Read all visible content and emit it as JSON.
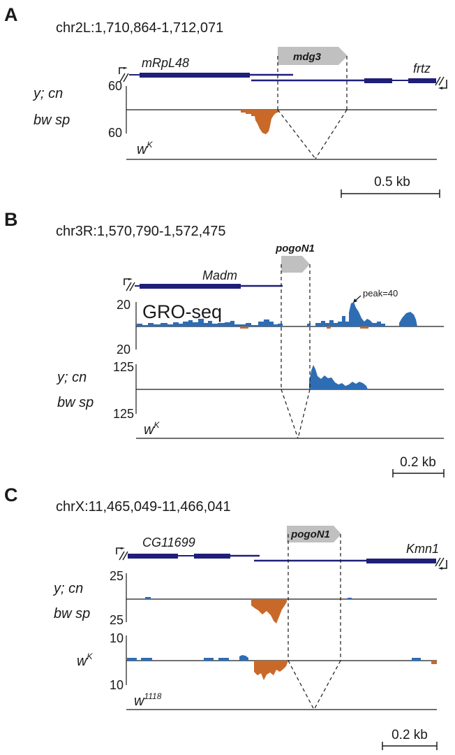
{
  "colors": {
    "gene": "#1f1f7a",
    "te": "#c0c0c0",
    "plus_signal": "#2e6db4",
    "minus_signal": "#c8692a",
    "axis": "#1a1a1a"
  },
  "panels": [
    {
      "letter": "A",
      "coordinates": "chr2L:1,710,864-1,712,071",
      "te_label": "mdg3",
      "genes": [
        "mRpL48",
        "frtz"
      ],
      "tracks": [
        {
          "label_line1": "y; cn",
          "label_line2": "bw sp",
          "scale_top": "60",
          "scale_bottom": "60"
        }
      ],
      "bottom_strain": "w",
      "bottom_strain_sup": "K",
      "scale_bar": "0.5 kb"
    },
    {
      "letter": "B",
      "coordinates": "chr3R:1,570,790-1,572,475",
      "te_label": "pogoN1",
      "genes": [
        "Madm"
      ],
      "tracks": [
        {
          "title": "GRO-seq",
          "scale_top": "20",
          "scale_bottom": "20",
          "annotation": "peak=40"
        },
        {
          "label_line1": "y; cn",
          "label_line2": "bw sp",
          "scale_top": "125",
          "scale_bottom": "125"
        }
      ],
      "bottom_strain": "w",
      "bottom_strain_sup": "K",
      "scale_bar": "0.2 kb"
    },
    {
      "letter": "C",
      "coordinates": "chrX:11,465,049-11,466,041",
      "te_label": "pogoN1",
      "genes": [
        "CG11699",
        "Kmn1"
      ],
      "tracks": [
        {
          "label_line1": "y; cn",
          "label_line2": "bw sp",
          "scale_top": "25",
          "scale_bottom": "25"
        },
        {
          "strain": "w",
          "strain_sup": "K",
          "scale_top": "10",
          "scale_bottom": "10"
        }
      ],
      "bottom_strain": "w",
      "bottom_strain_sup": "1118",
      "scale_bar": "0.2 kb"
    }
  ]
}
